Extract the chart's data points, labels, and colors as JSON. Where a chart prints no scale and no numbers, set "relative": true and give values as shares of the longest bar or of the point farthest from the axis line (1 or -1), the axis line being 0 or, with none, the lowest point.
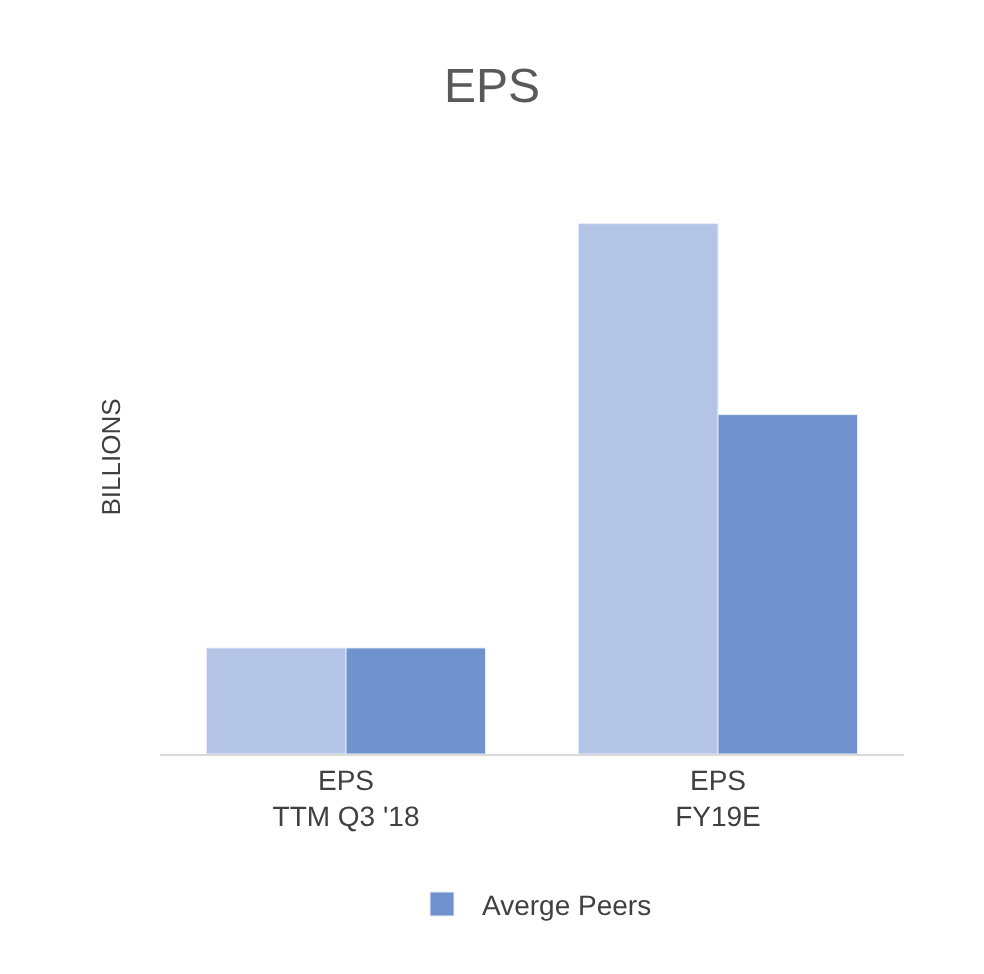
{
  "chart_data": {
    "type": "bar",
    "title": "EPS",
    "ylabel": "BILLIONS",
    "categories": [
      "EPS\nTTM Q3 '18",
      "EPS\nFY19E"
    ],
    "series": [
      {
        "color": "#b4c4e7",
        "values": [
          0.2,
          1
        ]
      },
      {
        "name": "Averge Peers",
        "color": "#7093d0",
        "values": [
          0.2,
          0.64
        ]
      }
    ],
    "relative": true,
    "legend": "bottom"
  }
}
